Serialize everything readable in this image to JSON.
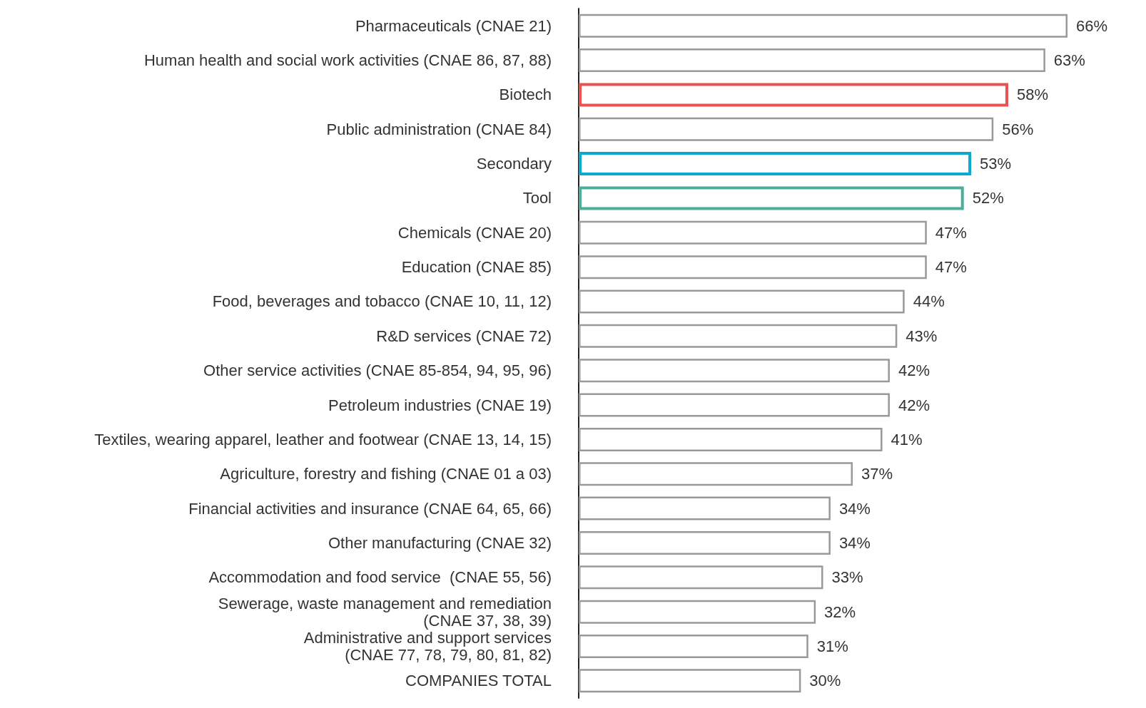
{
  "chart_data": {
    "type": "bar",
    "orientation": "horizontal",
    "categories": [
      "Pharmaceuticals (CNAE 21)",
      "Human health and social work activities (CNAE 86, 87, 88)",
      "Biotech",
      "Public administration (CNAE 84)",
      "Secondary",
      "Tool",
      "Chemicals (CNAE 20)",
      "Education (CNAE 85)",
      "Food, beverages and tobacco (CNAE 10, 11, 12)",
      "R&D services (CNAE 72)",
      "Other service activities (CNAE 85-854, 94, 95, 96)",
      "Petroleum industries (CNAE 19)",
      "Textiles, wearing apparel, leather and footwear (CNAE 13, 14, 15)",
      "Agriculture, forestry and fishing (CNAE 01 a 03)",
      "Financial activities and insurance (CNAE 64, 65, 66)",
      "Other manufacturing (CNAE 32)",
      "Accommodation and food service  (CNAE 55, 56)",
      "Sewerage, waste management and remediation\n(CNAE 37, 38, 39)",
      "Administrative and support services\n(CNAE 77, 78, 79, 80, 81, 82)",
      "COMPANIES TOTAL"
    ],
    "values": [
      66,
      63,
      58,
      56,
      53,
      52,
      47,
      47,
      44,
      43,
      42,
      42,
      41,
      37,
      34,
      34,
      33,
      32,
      31,
      30
    ],
    "value_labels": [
      "66%",
      "63%",
      "58%",
      "56%",
      "53%",
      "52%",
      "47%",
      "47%",
      "44%",
      "43%",
      "42%",
      "42%",
      "41%",
      "37%",
      "34%",
      "34%",
      "33%",
      "32%",
      "31%",
      "30%"
    ],
    "colors": [
      "#999999",
      "#999999",
      "#e8534f",
      "#999999",
      "#0aa9d0",
      "#4aae9b",
      "#999999",
      "#999999",
      "#999999",
      "#999999",
      "#999999",
      "#999999",
      "#999999",
      "#999999",
      "#999999",
      "#999999",
      "#999999",
      "#999999",
      "#999999",
      "#999999"
    ],
    "grid": false
  }
}
